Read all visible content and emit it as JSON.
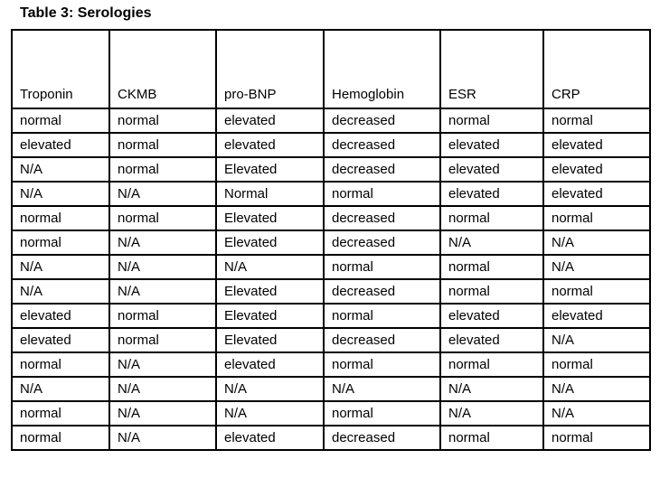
{
  "title": "Table 3: Serologies",
  "table": {
    "headers": [
      "Troponin",
      "CKMB",
      "pro-BNP",
      "Hemoglobin",
      "ESR",
      "CRP"
    ],
    "rows": [
      [
        "normal",
        "normal",
        "elevated",
        "decreased",
        "normal",
        "normal"
      ],
      [
        "elevated",
        "normal",
        "elevated",
        "decreased",
        "elevated",
        "elevated"
      ],
      [
        "N/A",
        "normal",
        "Elevated",
        "decreased",
        "elevated",
        "elevated"
      ],
      [
        "N/A",
        "N/A",
        "Normal",
        "normal",
        "elevated",
        "elevated"
      ],
      [
        "normal",
        "normal",
        "Elevated",
        "decreased",
        "normal",
        "normal"
      ],
      [
        "normal",
        "N/A",
        "Elevated",
        "decreased",
        "N/A",
        "N/A"
      ],
      [
        "N/A",
        "N/A",
        "N/A",
        "normal",
        "normal",
        "N/A"
      ],
      [
        "N/A",
        "N/A",
        "Elevated",
        "decreased",
        "normal",
        "normal"
      ],
      [
        "elevated",
        "normal",
        "Elevated",
        "normal",
        "elevated",
        "elevated"
      ],
      [
        "elevated",
        "normal",
        "Elevated",
        "decreased",
        "elevated",
        "N/A"
      ],
      [
        "normal",
        "N/A",
        "elevated",
        "normal",
        "normal",
        "normal"
      ],
      [
        "N/A",
        "N/A",
        "N/A",
        "N/A",
        "N/A",
        "N/A"
      ],
      [
        "normal",
        "N/A",
        "N/A",
        "normal",
        "N/A",
        "N/A"
      ],
      [
        "normal",
        "N/A",
        "elevated",
        "decreased",
        "normal",
        "normal"
      ]
    ]
  },
  "colors": {
    "text": "#000000",
    "border": "#000000",
    "background": "#ffffff"
  }
}
